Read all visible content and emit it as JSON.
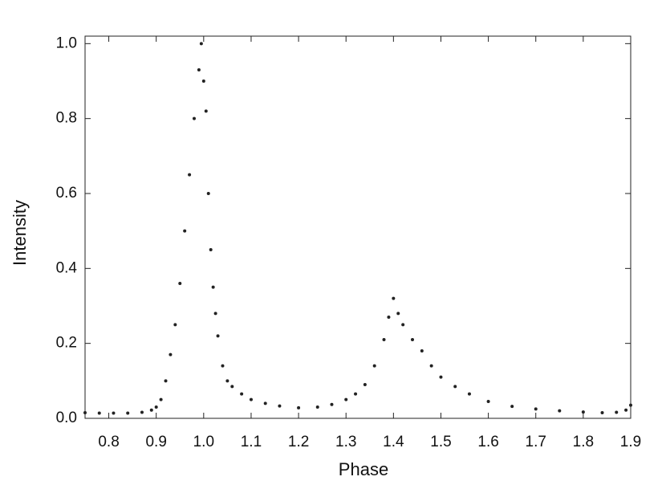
{
  "chart_data": {
    "type": "scatter",
    "xlabel": "Phase",
    "ylabel": "Intensity",
    "x": [
      0.75,
      0.78,
      0.81,
      0.84,
      0.87,
      0.89,
      0.9,
      0.91,
      0.92,
      0.93,
      0.94,
      0.95,
      0.96,
      0.97,
      0.98,
      0.99,
      0.995,
      1.0,
      1.005,
      1.01,
      1.015,
      1.02,
      1.025,
      1.03,
      1.04,
      1.05,
      1.06,
      1.08,
      1.1,
      1.13,
      1.16,
      1.2,
      1.24,
      1.27,
      1.3,
      1.32,
      1.34,
      1.36,
      1.38,
      1.39,
      1.4,
      1.41,
      1.42,
      1.44,
      1.46,
      1.48,
      1.5,
      1.53,
      1.56,
      1.6,
      1.65,
      1.7,
      1.75,
      1.8,
      1.84,
      1.87,
      1.89,
      1.9
    ],
    "values": [
      0.015,
      0.014,
      0.014,
      0.014,
      0.016,
      0.022,
      0.03,
      0.05,
      0.1,
      0.17,
      0.25,
      0.36,
      0.5,
      0.65,
      0.8,
      0.93,
      1.0,
      0.9,
      0.82,
      0.6,
      0.45,
      0.35,
      0.28,
      0.22,
      0.14,
      0.1,
      0.085,
      0.065,
      0.05,
      0.04,
      0.033,
      0.028,
      0.03,
      0.037,
      0.05,
      0.065,
      0.09,
      0.14,
      0.21,
      0.27,
      0.32,
      0.28,
      0.25,
      0.21,
      0.18,
      0.14,
      0.11,
      0.085,
      0.065,
      0.045,
      0.032,
      0.025,
      0.02,
      0.017,
      0.015,
      0.016,
      0.022,
      0.035
    ],
    "color": "#222222",
    "xlim": [
      0.75,
      1.9
    ],
    "ylim": [
      0,
      1.02
    ],
    "xticks": [
      0.8,
      0.9,
      {
        "value": 1.0,
        "label": "1.0"
      },
      1.1,
      1.2,
      1.3,
      1.4,
      1.5,
      1.6,
      1.7,
      1.8,
      1.9
    ],
    "yticks": [
      {
        "value": 0,
        "label": "0.0"
      },
      0.2,
      0.4,
      0.6,
      0.8,
      {
        "value": 1.0,
        "label": "1.0"
      }
    ]
  }
}
